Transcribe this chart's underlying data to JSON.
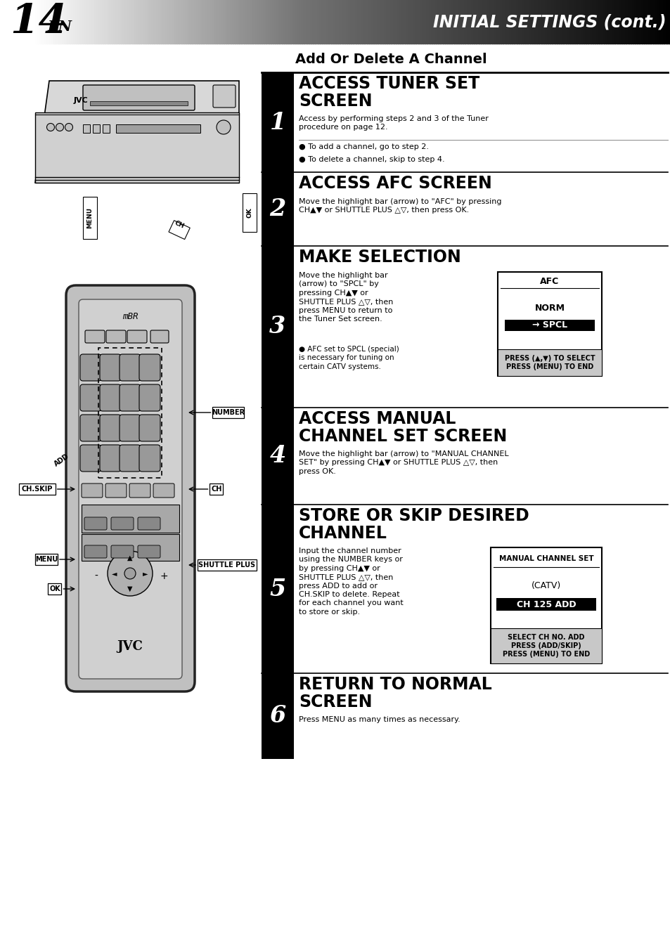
{
  "page_number": "14",
  "page_suffix": "EN",
  "header_title": "INITIAL SETTINGS (cont.)",
  "section_title": "Add Or Delete A Channel",
  "background_color": "#ffffff",
  "steps": [
    {
      "num": "1",
      "heading": "ACCESS TUNER SET\nSCREEN",
      "body": "Access by performing steps 2 and 3 of the Tuner\nprocedure on page 12.",
      "bullets": [
        "To add a channel, go to step 2.",
        "To delete a channel, skip to step 4."
      ],
      "has_screen": false
    },
    {
      "num": "2",
      "heading": "ACCESS AFC SCREEN",
      "body": "Move the highlight bar (arrow) to \"AFC\" by pressing\nCH▲▼ or SHUTTLE PLUS △▽, then press OK.",
      "bullets": [],
      "has_screen": false
    },
    {
      "num": "3",
      "heading": "MAKE SELECTION",
      "body_left": "Move the highlight bar\n(arrow) to \"SPCL\" by\npressing CH▲▼ or\nSHUTTLE PLUS △▽, then\npress MENU to return to\nthe Tuner Set screen.",
      "bullet_left": "AFC set to SPCL (special)\nis necessary for tuning on\ncertain CATV systems.",
      "has_screen": true,
      "screen_title": "AFC",
      "screen_items": [
        "NORM",
        "→ SPCL"
      ],
      "screen_footer": "PRESS (▲,▼) TO SELECT\nPRESS (MENU) TO END"
    },
    {
      "num": "4",
      "heading": "ACCESS MANUAL\nCHANNEL SET SCREEN",
      "body": "Move the highlight bar (arrow) to \"MANUAL CHANNEL\nSET\" by pressing CH▲▼ or SHUTTLE PLUS △▽, then\npress OK.",
      "bullets": [],
      "has_screen": false
    },
    {
      "num": "5",
      "heading": "STORE OR SKIP DESIRED\nCHANNEL",
      "body_left": "Input the channel number\nusing the NUMBER keys or\nby pressing CH▲▼ or\nSHUTTLE PLUS △▽, then\npress ADD to add or\nCH.SKIP to delete. Repeat\nfor each channel you want\nto store or skip.",
      "has_screen": true,
      "screen_title": "MANUAL CHANNEL SET",
      "screen_items": [
        "(CATV)",
        "CH 125 ADD"
      ],
      "screen_highlight": "CH 125 ADD",
      "screen_footer": "SELECT CH NO. ADD\nPRESS (ADD/SKIP)\nPRESS (MENU) TO END"
    },
    {
      "num": "6",
      "heading": "RETURN TO NORMAL\nSCREEN",
      "body": "Press MENU as many times as necessary.",
      "bullets": [],
      "has_screen": false
    }
  ]
}
